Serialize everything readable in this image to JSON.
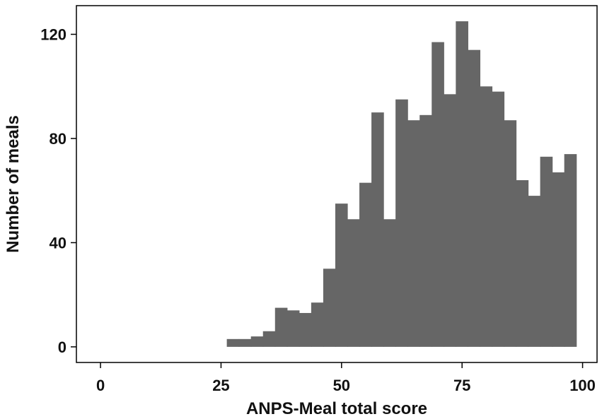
{
  "chart_data": {
    "type": "bar",
    "subtype": "histogram",
    "xlabel": "ANPS-Meal total score",
    "ylabel": "Number of meals",
    "xlim": [
      -5,
      103
    ],
    "ylim": [
      -6,
      131
    ],
    "x_ticks": [
      0,
      25,
      50,
      75,
      100
    ],
    "y_ticks": [
      0,
      40,
      80,
      120
    ],
    "grid": false,
    "bar_color": "#666666",
    "bins": [
      {
        "start": 26.2,
        "end": 28.7,
        "count": 3
      },
      {
        "start": 28.7,
        "end": 31.2,
        "count": 3
      },
      {
        "start": 31.2,
        "end": 33.7,
        "count": 4
      },
      {
        "start": 33.7,
        "end": 36.2,
        "count": 6
      },
      {
        "start": 36.2,
        "end": 38.7,
        "count": 15
      },
      {
        "start": 38.7,
        "end": 41.2,
        "count": 14
      },
      {
        "start": 41.2,
        "end": 43.7,
        "count": 13
      },
      {
        "start": 43.7,
        "end": 46.2,
        "count": 17
      },
      {
        "start": 46.2,
        "end": 48.7,
        "count": 30
      },
      {
        "start": 48.7,
        "end": 51.2,
        "count": 55
      },
      {
        "start": 51.2,
        "end": 53.7,
        "count": 49
      },
      {
        "start": 53.7,
        "end": 56.2,
        "count": 63
      },
      {
        "start": 56.2,
        "end": 58.7,
        "count": 90
      },
      {
        "start": 58.7,
        "end": 61.2,
        "count": 49
      },
      {
        "start": 61.2,
        "end": 63.7,
        "count": 95
      },
      {
        "start": 63.7,
        "end": 66.2,
        "count": 87
      },
      {
        "start": 66.2,
        "end": 68.7,
        "count": 89
      },
      {
        "start": 68.7,
        "end": 71.2,
        "count": 117
      },
      {
        "start": 71.2,
        "end": 73.7,
        "count": 97
      },
      {
        "start": 73.7,
        "end": 76.2,
        "count": 125
      },
      {
        "start": 76.2,
        "end": 78.7,
        "count": 114
      },
      {
        "start": 78.7,
        "end": 81.2,
        "count": 100
      },
      {
        "start": 81.2,
        "end": 83.7,
        "count": 98
      },
      {
        "start": 83.7,
        "end": 86.2,
        "count": 87
      },
      {
        "start": 86.2,
        "end": 88.7,
        "count": 64
      },
      {
        "start": 88.7,
        "end": 91.2,
        "count": 58
      },
      {
        "start": 91.2,
        "end": 93.7,
        "count": 73
      },
      {
        "start": 93.7,
        "end": 96.2,
        "count": 67
      },
      {
        "start": 96.2,
        "end": 98.7,
        "count": 74
      }
    ]
  }
}
